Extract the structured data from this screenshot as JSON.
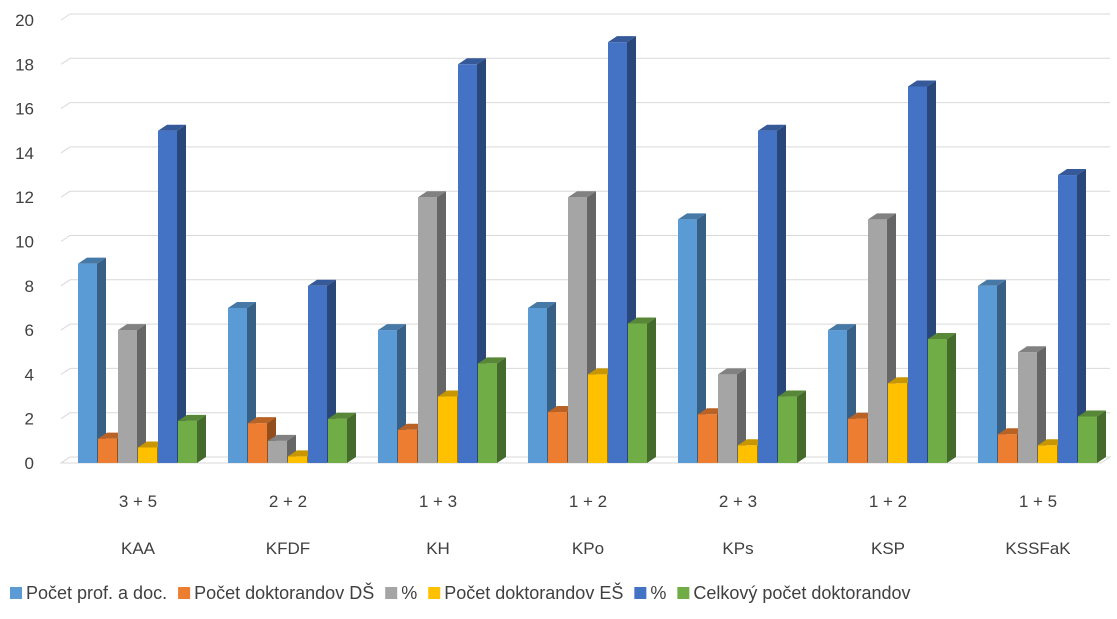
{
  "chart_data": {
    "type": "bar",
    "style": "3d-clustered-column",
    "categories": [
      "KAA",
      "KFDF",
      "KH",
      "KPo",
      "KPs",
      "KSP",
      "KSSFaK"
    ],
    "category_sublabels": [
      "3 + 5",
      "2 + 2",
      "1 + 3",
      "1 + 2",
      "2 + 3",
      "1 + 2",
      "1 + 5"
    ],
    "ylim": [
      0,
      20
    ],
    "yticks": [
      0,
      2,
      4,
      6,
      8,
      10,
      12,
      14,
      16,
      18,
      20
    ],
    "grid": true,
    "legend_position": "bottom",
    "series": [
      {
        "name": "Počet prof. a doc.",
        "color": "#5B9BD5",
        "values": [
          9,
          7,
          6,
          7,
          11,
          6,
          8
        ]
      },
      {
        "name": "Počet doktorandov DŠ",
        "color": "#ED7D31",
        "values": [
          1.1,
          1.8,
          1.5,
          2.3,
          2.2,
          2.0,
          1.3
        ]
      },
      {
        "name": "%",
        "color": "#A5A5A5",
        "values": [
          6,
          1,
          12,
          12,
          4,
          11,
          5
        ]
      },
      {
        "name": "Počet doktorandov EŠ",
        "color": "#FFC000",
        "values": [
          0.7,
          0.3,
          3.0,
          4.0,
          0.8,
          3.6,
          0.8
        ]
      },
      {
        "name": "%",
        "color": "#4472C4",
        "values": [
          15,
          8,
          18,
          19,
          15,
          17,
          13
        ]
      },
      {
        "name": "Celkový počet doktorandov",
        "color": "#70AD47",
        "values": [
          1.9,
          2.0,
          4.5,
          6.3,
          3.0,
          5.6,
          2.1
        ]
      }
    ]
  }
}
